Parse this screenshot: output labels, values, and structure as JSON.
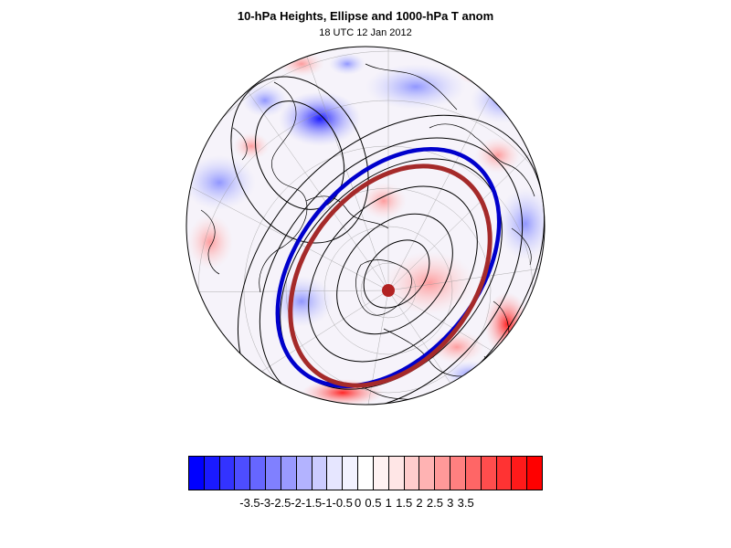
{
  "title": "10-hPa Heights, Ellipse and 1000-hPa T anom",
  "subtitle": "18 UTC 12 Jan 2012",
  "map": {
    "projection": "polar-stereographic-north",
    "field_shaded": "1000-hPa temperature anomaly",
    "field_contoured": "10-hPa geopotential height",
    "contour_color": "#000000",
    "ellipse_color": "#a52a2a",
    "vortex_edge_color": "#0000cc",
    "center_marker_color": "#b22222"
  },
  "colorbar": {
    "colors": [
      "#0000ff",
      "#1a1aff",
      "#3333ff",
      "#4d4dff",
      "#6666ff",
      "#8080ff",
      "#9999ff",
      "#b3b3ff",
      "#ccccff",
      "#e6e6ff",
      "#f2f2ff",
      "#ffffff",
      "#fff2f2",
      "#ffe6e6",
      "#ffcccc",
      "#ffb3b3",
      "#ff9999",
      "#ff8080",
      "#ff6666",
      "#ff4d4d",
      "#ff3333",
      "#ff1a1a",
      "#ff0000"
    ],
    "labels": [
      "-3.5",
      "-3",
      "-2.5",
      "-2",
      "-1.5",
      "-1",
      "-0.5",
      "0",
      "0.5",
      "1",
      "1.5",
      "2",
      "2.5",
      "3",
      "3.5"
    ]
  }
}
